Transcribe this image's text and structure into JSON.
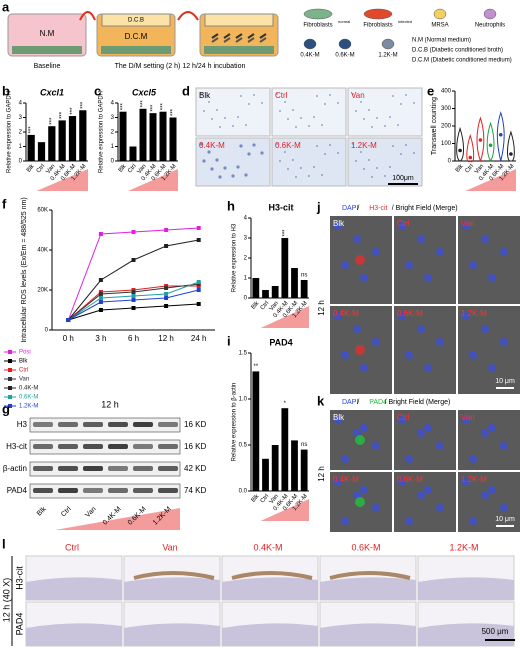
{
  "schematic": {
    "label": "a",
    "wells": [
      "N.M",
      "D.C.B",
      "D.C.M"
    ],
    "steps": [
      "Baseline",
      "The D/M setting (2 h) 12 h/24 h incubation"
    ],
    "legend": [
      [
        "Fibroblasts",
        "normal"
      ],
      [
        "Fibroblasts",
        "infected"
      ],
      [
        "MRSA"
      ],
      [
        "Neutrophils"
      ],
      [
        "0.4K-M"
      ],
      [
        "0.6K-M"
      ],
      [
        "1.2K-M"
      ]
    ],
    "notes": [
      "N.M (Normal medium)",
      "D.C.B (Diabetic conditioned broth)",
      "D.C.M (Diabetic conditioned medium)"
    ]
  },
  "migration_images": {
    "label": "d",
    "groups": [
      "Blk",
      "Ctrl",
      "Van",
      "0.4K-M",
      "0.6K-M",
      "1.2K-M"
    ],
    "scale": "100μm"
  },
  "blot": {
    "label": "g",
    "time": "12 h",
    "rows": [
      [
        "H3",
        "16 KD"
      ],
      [
        "H3-cit",
        "16 KD"
      ],
      [
        "β-actin",
        "42 KD"
      ],
      [
        "PAD4",
        "74 KD"
      ]
    ],
    "lanes": [
      "Blk",
      "Ctrl",
      "Van",
      "0.4K-M",
      "0.6K-M",
      "1.2K-M"
    ]
  },
  "h3cit_images": {
    "label": "j",
    "title": [
      "DAPI",
      " / ",
      "H3-cit",
      " / Bright Field (Merge)"
    ],
    "time": "12 h",
    "groups": [
      "Blk",
      "Ctrl",
      "Van",
      "0.4K-M",
      "0.6K-M",
      "1.2K-M"
    ],
    "scale": "10 μm"
  },
  "pad4_images": {
    "label": "k",
    "title": [
      "DAPI",
      " / ",
      "PAD4",
      " / Bright Field (Merge)"
    ],
    "time": "12 h",
    "groups": [
      "Blk",
      "Ctrl",
      "Van",
      "0.4K-M",
      "0.6K-M",
      "1.2K-M"
    ],
    "scale": "10 μm"
  },
  "histology": {
    "label": "l",
    "groups": [
      "Ctrl",
      "Van",
      "0.4K-M",
      "0.6K-M",
      "1.2K-M"
    ],
    "rows": [
      "H3-cit",
      "PAD4"
    ],
    "condition": "12 h (40 X)",
    "scale": "500 μm"
  },
  "chart_data": [
    {
      "type": "bar",
      "label": "b",
      "title": "Cxcl1",
      "y_label": "Relative expression to GAPDH",
      "categories": [
        "Blk",
        "Ctrl",
        "Van",
        "0.4K-M",
        "0.6K-M",
        "1.2K-M"
      ],
      "values": [
        1.8,
        1.3,
        2.4,
        2.8,
        3.1,
        3.5
      ],
      "significance": [
        "***",
        null,
        "***",
        "***",
        "***",
        "***"
      ],
      "color": "#000000",
      "ylim": [
        0,
        4
      ],
      "yticks": [
        0,
        1,
        2,
        3,
        4
      ]
    },
    {
      "type": "bar",
      "label": "c",
      "title": "Cxcl5",
      "y_label": "Relative expression to GAPDH",
      "categories": [
        "Blk",
        "Ctrl",
        "Van",
        "0.4K-M",
        "0.6K-M",
        "1.2K-M"
      ],
      "values": [
        3.4,
        1.0,
        3.6,
        3.3,
        3.4,
        3.0
      ],
      "significance": [
        "***",
        null,
        "***",
        "***",
        "***",
        "***"
      ],
      "color": "#000000",
      "ylim": [
        0,
        4
      ],
      "yticks": [
        0,
        1,
        2,
        3,
        4
      ]
    },
    {
      "type": "violin",
      "label": "e",
      "y_label": "Transwell counting",
      "categories": [
        "Blk",
        "Ctrl",
        "Van",
        "0.4K-M",
        "0.6K-M",
        "1.2K-M"
      ],
      "values": [
        60,
        20,
        120,
        90,
        150,
        40
      ],
      "colors": [
        "#222222",
        "#e02020",
        "#e02020",
        "#20a040",
        "#2040c0",
        "#222222"
      ],
      "ylim": [
        0,
        400
      ],
      "yticks": [
        0,
        100,
        200,
        300,
        400
      ]
    },
    {
      "type": "line",
      "label": "f",
      "y_label": "Intracellular ROS levels (Ex/Em = 488/525 nm)",
      "categories": [
        "0 h",
        "3 h",
        "6 h",
        "12 h",
        "24 h"
      ],
      "series": [
        {
          "name": "Posi",
          "color": "#e020e0",
          "values": [
            5000,
            48000,
            49000,
            50000,
            51000
          ]
        },
        {
          "name": "Blk",
          "color": "#000000",
          "values": [
            5000,
            10000,
            11000,
            12000,
            13000
          ]
        },
        {
          "name": "Ctrl",
          "color": "#e02020",
          "values": [
            5000,
            19000,
            20000,
            22000,
            22000
          ]
        },
        {
          "name": "Van",
          "color": "#333333",
          "values": [
            5000,
            18000,
            19000,
            21000,
            23000
          ]
        },
        {
          "name": "0.4K-M",
          "color": "#202020",
          "values": [
            5000,
            25000,
            35000,
            42000,
            45000
          ]
        },
        {
          "name": "0.6K-M",
          "color": "#20a0a0",
          "values": [
            5000,
            16000,
            17000,
            18000,
            24000
          ]
        },
        {
          "name": "1.2K-M",
          "color": "#2040d0",
          "values": [
            5000,
            14000,
            15000,
            16000,
            20000
          ]
        }
      ],
      "ylim": [
        0,
        60000
      ],
      "yticks": [
        0,
        {
          "value": 20000,
          "label": "20K"
        },
        {
          "value": 40000,
          "label": "40K"
        },
        {
          "value": 60000,
          "label": "60K"
        }
      ]
    },
    {
      "type": "bar",
      "label": "h",
      "title": "H3-cit",
      "y_label": "Relative expression to H3",
      "categories": [
        "Blk",
        "Ctrl",
        "Van",
        "0.4K-M",
        "0.6K-M",
        "1.2K-M"
      ],
      "values": [
        1.0,
        0.4,
        0.6,
        3.0,
        1.5,
        0.9
      ],
      "significance": [
        null,
        null,
        null,
        "***",
        null,
        "ns"
      ],
      "color": "#000000",
      "ylim": [
        0,
        4
      ],
      "yticks": [
        0,
        1,
        2,
        3,
        4
      ]
    },
    {
      "type": "bar",
      "label": "i",
      "title": "PAD4",
      "y_label": "Relative expression to β-actin",
      "categories": [
        "Blk",
        "Ctrl",
        "Van",
        "0.4K-M",
        "0.6K-M",
        "1.2K-M"
      ],
      "values": [
        1.3,
        0.35,
        0.5,
        0.9,
        0.55,
        0.45
      ],
      "significance": [
        "**",
        null,
        null,
        "*",
        null,
        "ns"
      ],
      "color": "#000000",
      "ylim": [
        0,
        1.5
      ],
      "yticks": [
        {
          "value": 0,
          "label": "0.0"
        },
        0.5,
        {
          "value": 1,
          "label": "1.0"
        },
        1.5
      ]
    }
  ]
}
